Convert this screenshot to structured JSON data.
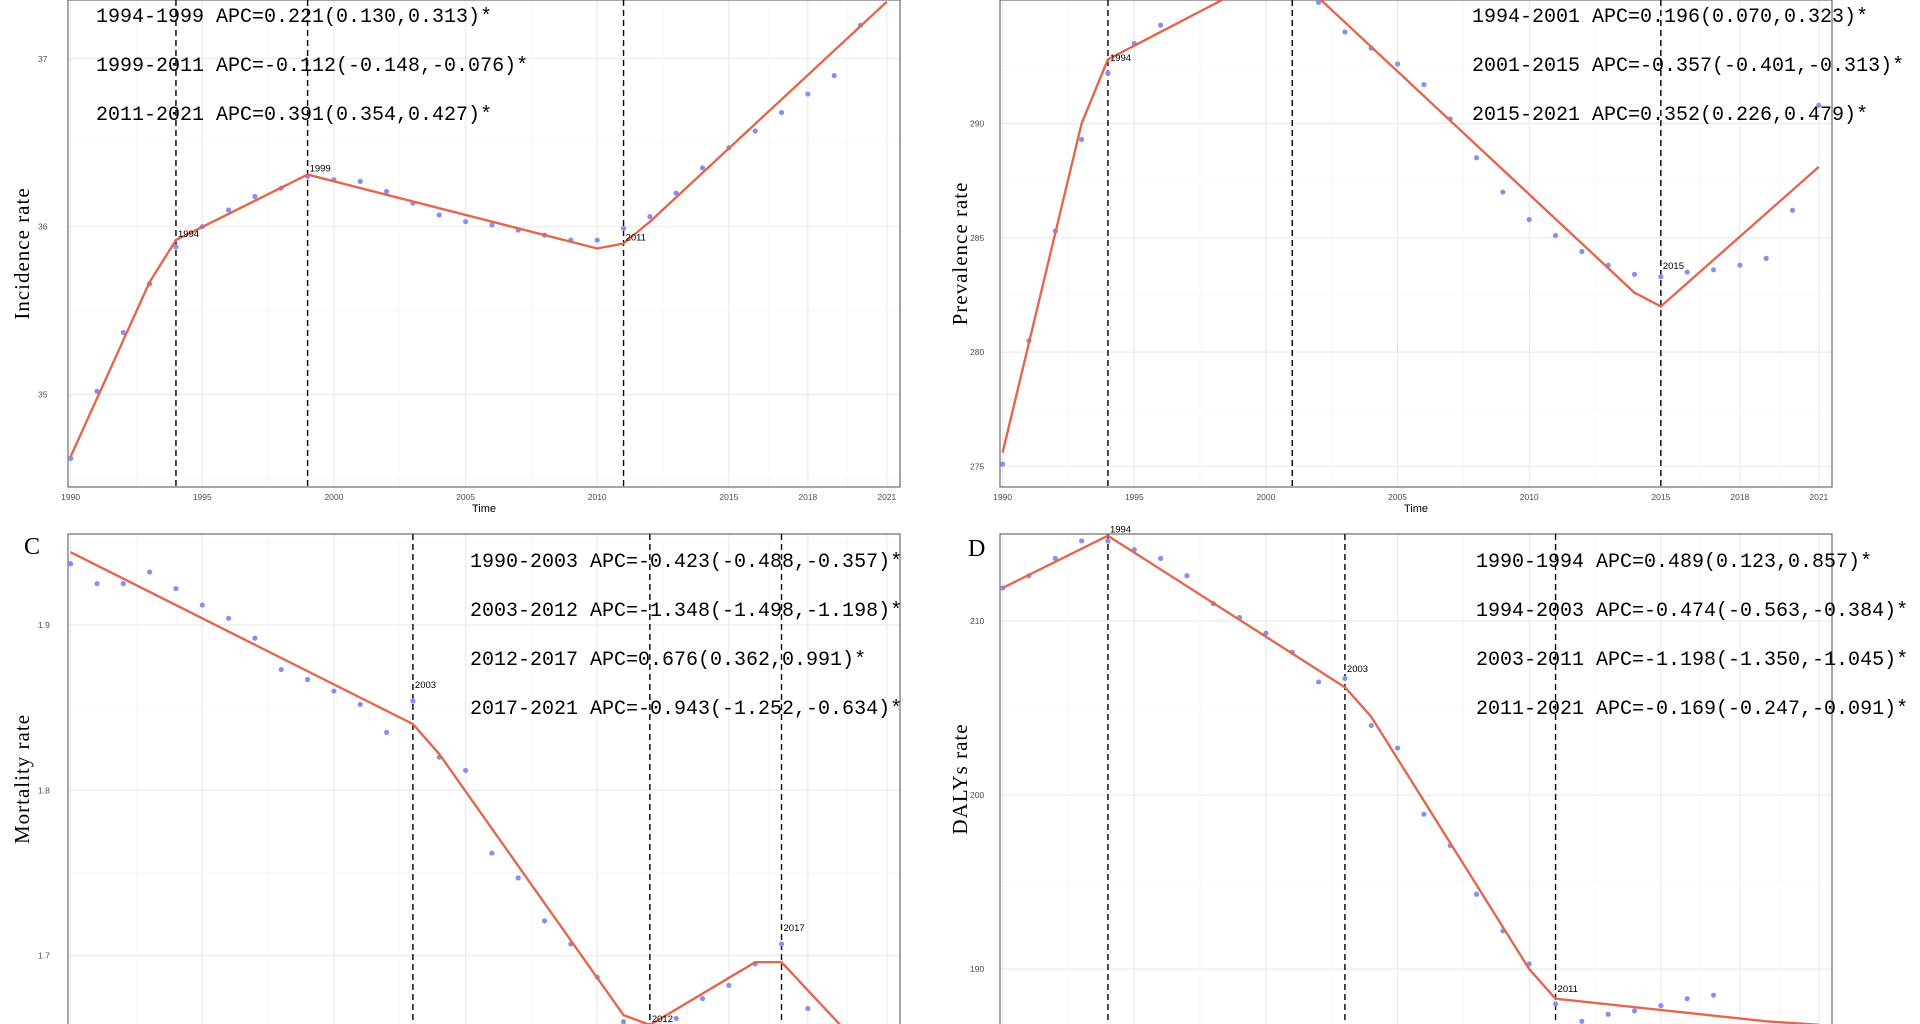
{
  "chart_data": [
    {
      "type": "line",
      "panel_label": "",
      "xlabel": "Time",
      "ylabel": "Incidence rate",
      "x_ticks": [
        1990,
        1995,
        2000,
        2005,
        2010,
        2015,
        2018,
        2021
      ],
      "y_ticks": [
        35,
        36,
        37
      ],
      "xlim": [
        1989.9,
        2021.5
      ],
      "ylim": [
        34.45,
        37.35
      ],
      "points": [
        [
          1990,
          34.62
        ],
        [
          1991,
          35.02
        ],
        [
          1992,
          35.37
        ],
        [
          1993,
          35.66
        ],
        [
          1994,
          35.88
        ],
        [
          1995,
          36.0
        ],
        [
          1996,
          36.1
        ],
        [
          1997,
          36.18
        ],
        [
          1998,
          36.23
        ],
        [
          1999,
          36.3
        ],
        [
          2000,
          36.28
        ],
        [
          2001,
          36.27
        ],
        [
          2002,
          36.21
        ],
        [
          2003,
          36.14
        ],
        [
          2004,
          36.07
        ],
        [
          2005,
          36.03
        ],
        [
          2006,
          36.01
        ],
        [
          2007,
          35.98
        ],
        [
          2008,
          35.95
        ],
        [
          2009,
          35.92
        ],
        [
          2010,
          35.92
        ],
        [
          2011,
          35.99
        ],
        [
          2012,
          36.06
        ],
        [
          2013,
          36.2
        ],
        [
          2014,
          36.35
        ],
        [
          2015,
          36.47
        ],
        [
          2016,
          36.57
        ],
        [
          2017,
          36.68
        ],
        [
          2018,
          36.79
        ],
        [
          2019,
          36.9
        ],
        [
          2020,
          37.2
        ]
      ],
      "fit": [
        [
          1990,
          34.63
        ],
        [
          1993,
          35.67
        ],
        [
          1994,
          35.92
        ],
        [
          1999,
          36.31
        ],
        [
          2010,
          35.87
        ],
        [
          2011,
          35.9
        ],
        [
          2012,
          36.03
        ],
        [
          2021,
          37.34
        ]
      ],
      "joinpoints": [
        {
          "year": 1994,
          "label": "1994",
          "y": 35.92
        },
        {
          "year": 1999,
          "label": "1999",
          "y": 36.31
        },
        {
          "year": 2011,
          "label": "2011",
          "y": 35.9
        }
      ],
      "apc": [
        "1994-1999 APC=0.221(0.130,0.313)*",
        "1999-2011 APC=-0.112(-0.148,-0.076)*",
        "2011-2021 APC=0.391(0.354,0.427)*"
      ]
    },
    {
      "type": "line",
      "panel_label": "",
      "xlabel": "Time",
      "ylabel": "Prevalence rate",
      "x_ticks": [
        1990,
        1995,
        2000,
        2005,
        2010,
        2015,
        2018,
        2021
      ],
      "y_ticks": [
        275,
        280,
        285,
        290
      ],
      "xlim": [
        1989.9,
        2021.5
      ],
      "ylim": [
        274.1,
        295.4
      ],
      "points": [
        [
          1990,
          275.1
        ],
        [
          1991,
          280.5
        ],
        [
          1992,
          285.3
        ],
        [
          1993,
          289.3
        ],
        [
          1994,
          292.2
        ],
        [
          1995,
          293.5
        ],
        [
          1996,
          294.3
        ],
        [
          2002,
          295.3
        ],
        [
          2003,
          294.0
        ],
        [
          2004,
          293.3
        ],
        [
          2005,
          292.6
        ],
        [
          2006,
          291.7
        ],
        [
          2007,
          290.2
        ],
        [
          2008,
          288.5
        ],
        [
          2009,
          287.0
        ],
        [
          2010,
          285.8
        ],
        [
          2011,
          285.1
        ],
        [
          2012,
          284.4
        ],
        [
          2013,
          283.8
        ],
        [
          2014,
          283.4
        ],
        [
          2015,
          283.3
        ],
        [
          2016,
          283.5
        ],
        [
          2017,
          283.6
        ],
        [
          2018,
          283.8
        ],
        [
          2019,
          284.1
        ],
        [
          2020,
          286.2
        ],
        [
          2021,
          290.8
        ]
      ],
      "fit": [
        [
          1990,
          275.6
        ],
        [
          1993,
          290.0
        ],
        [
          1994,
          292.8
        ],
        [
          1999,
          295.8
        ],
        [
          2002,
          295.5
        ],
        [
          2014,
          282.6
        ],
        [
          2015,
          282.0
        ],
        [
          2021,
          288.1
        ]
      ],
      "joinpoints": [
        {
          "year": 1994,
          "label": "1994",
          "y": 292.6
        },
        {
          "year": 2001,
          "label": "",
          "y": 295.5
        },
        {
          "year": 2015,
          "label": "2015",
          "y": 283.5
        }
      ],
      "apc": [
        "1994-2001 APC=0.196(0.070,0.323)*",
        "2001-2015 APC=-0.357(-0.401,-0.313)*",
        "2015-2021 APC=0.352(0.226,0.479)*"
      ]
    },
    {
      "type": "line",
      "panel_label": "C",
      "xlabel": "",
      "ylabel": "Mortality rate",
      "x_ticks": [],
      "y_ticks": [
        1.7,
        1.8,
        1.9
      ],
      "xlim": [
        1989.9,
        2021.5
      ],
      "ylim": [
        1.655,
        1.955
      ],
      "points": [
        [
          1990,
          1.937
        ],
        [
          1991,
          1.925
        ],
        [
          1992,
          1.925
        ],
        [
          1993,
          1.932
        ],
        [
          1994,
          1.922
        ],
        [
          1995,
          1.912
        ],
        [
          1996,
          1.904
        ],
        [
          1997,
          1.892
        ],
        [
          1998,
          1.873
        ],
        [
          1999,
          1.867
        ],
        [
          2000,
          1.86
        ],
        [
          2001,
          1.852
        ],
        [
          2002,
          1.835
        ],
        [
          2003,
          1.854
        ],
        [
          2004,
          1.82
        ],
        [
          2005,
          1.812
        ],
        [
          2006,
          1.762
        ],
        [
          2007,
          1.747
        ],
        [
          2008,
          1.721
        ],
        [
          2009,
          1.707
        ],
        [
          2010,
          1.687
        ],
        [
          2011,
          1.66
        ],
        [
          2012,
          1.658
        ],
        [
          2013,
          1.662
        ],
        [
          2014,
          1.674
        ],
        [
          2015,
          1.682
        ],
        [
          2016,
          1.695
        ],
        [
          2017,
          1.707
        ],
        [
          2018,
          1.668
        ],
        [
          2019,
          1.655
        ]
      ],
      "fit": [
        [
          1990,
          1.944
        ],
        [
          2003,
          1.84
        ],
        [
          2004,
          1.822
        ],
        [
          2011,
          1.664
        ],
        [
          2012,
          1.658
        ],
        [
          2016,
          1.696
        ],
        [
          2017,
          1.696
        ],
        [
          2020,
          1.645
        ]
      ],
      "joinpoints": [
        {
          "year": 2003,
          "label": "2003",
          "y": 1.86
        },
        {
          "year": 2012,
          "label": "2012",
          "y": 1.658
        },
        {
          "year": 2017,
          "label": "2017",
          "y": 1.713
        }
      ],
      "apc": [
        "1990-2003 APC=-0.423(-0.488,-0.357)*",
        "2003-2012 APC=-1.348(-1.498,-1.198)*",
        "2012-2017 APC=0.676(0.362,0.991)*",
        "2017-2021 APC=-0.943(-1.252,-0.634)*"
      ]
    },
    {
      "type": "line",
      "panel_label": "D",
      "xlabel": "",
      "ylabel": "DALYs rate",
      "x_ticks": [],
      "y_ticks": [
        190,
        200,
        210
      ],
      "xlim": [
        1989.9,
        2021.5
      ],
      "ylim": [
        186.5,
        215.0
      ],
      "points": [
        [
          1990,
          211.9
        ],
        [
          1991,
          212.6
        ],
        [
          1992,
          213.6
        ],
        [
          1993,
          214.6
        ],
        [
          1994,
          214.6
        ],
        [
          1995,
          214.1
        ],
        [
          1996,
          213.6
        ],
        [
          1997,
          212.6
        ],
        [
          1998,
          211.0
        ],
        [
          1999,
          210.2
        ],
        [
          2000,
          209.3
        ],
        [
          2001,
          208.2
        ],
        [
          2002,
          206.5
        ],
        [
          2003,
          206.7
        ],
        [
          2004,
          204.0
        ],
        [
          2005,
          202.7
        ],
        [
          2006,
          198.9
        ],
        [
          2007,
          197.1
        ],
        [
          2008,
          194.3
        ],
        [
          2009,
          192.2
        ],
        [
          2010,
          190.3
        ],
        [
          2011,
          188.0
        ],
        [
          2012,
          187.0
        ],
        [
          2013,
          187.4
        ],
        [
          2014,
          187.6
        ],
        [
          2015,
          187.9
        ],
        [
          2016,
          188.3
        ],
        [
          2017,
          188.5
        ]
      ],
      "fit": [
        [
          1990,
          211.9
        ],
        [
          1994,
          214.9
        ],
        [
          2003,
          206.2
        ],
        [
          2004,
          204.5
        ],
        [
          2010,
          190.0
        ],
        [
          2011,
          188.3
        ],
        [
          2019,
          187.0
        ],
        [
          2021,
          186.8
        ]
      ],
      "joinpoints": [
        {
          "year": 1994,
          "label": "1994",
          "y": 214.9
        },
        {
          "year": 2003,
          "label": "2003",
          "y": 206.9
        },
        {
          "year": 2011,
          "label": "2011",
          "y": 188.5
        }
      ],
      "apc": [
        "1990-1994 APC=0.489(0.123,0.857)*",
        "1994-2003 APC=-0.474(-0.563,-0.384)*",
        "2003-2011 APC=-1.198(-1.350,-1.045)*",
        "2011-2021 APC=-0.169(-0.247,-0.091)*"
      ]
    }
  ]
}
